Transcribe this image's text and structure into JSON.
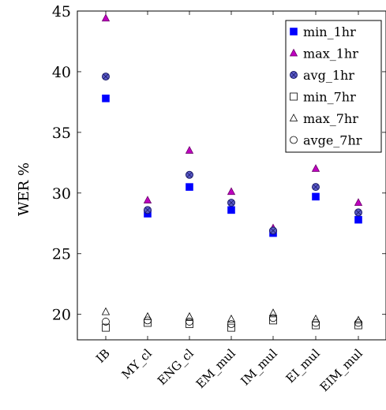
{
  "chart_data": {
    "type": "scatter",
    "categories": [
      "IB",
      "MY_cl",
      "ENG_cl",
      "EM_mul",
      "IM_mul",
      "EI_mul",
      "EIM_mul"
    ],
    "ylabel": "WER %",
    "ylim": [
      17.9,
      45
    ],
    "yticks": [
      20,
      25,
      30,
      35,
      40,
      45
    ],
    "legend_position": "top-right",
    "grid": false,
    "series": [
      {
        "name": "min_1hr",
        "marker": "square-filled",
        "color": "#0000ff",
        "values": [
          37.8,
          28.3,
          30.5,
          28.6,
          26.7,
          29.7,
          27.8
        ]
      },
      {
        "name": "max_1hr",
        "marker": "triangle-filled",
        "color": "#bf00bf",
        "values": [
          44.4,
          29.4,
          33.5,
          30.1,
          27.1,
          32.0,
          29.2
        ]
      },
      {
        "name": "avg_1hr",
        "marker": "circle-hatched",
        "color": "#3333aa",
        "values": [
          39.6,
          28.6,
          31.5,
          29.2,
          26.9,
          30.5,
          28.4
        ]
      },
      {
        "name": "min_7hr",
        "marker": "square-open",
        "color": "#000000",
        "values": [
          18.9,
          19.3,
          19.2,
          18.9,
          19.5,
          19.1,
          19.1
        ]
      },
      {
        "name": "max_7hr",
        "marker": "triangle-open",
        "color": "#000000",
        "values": [
          20.2,
          19.8,
          19.8,
          19.6,
          20.1,
          19.6,
          19.5
        ]
      },
      {
        "name": "avge_7hr",
        "marker": "circle-open",
        "color": "#000000",
        "values": [
          19.4,
          19.5,
          19.4,
          19.2,
          19.7,
          19.3,
          19.3
        ]
      }
    ]
  }
}
